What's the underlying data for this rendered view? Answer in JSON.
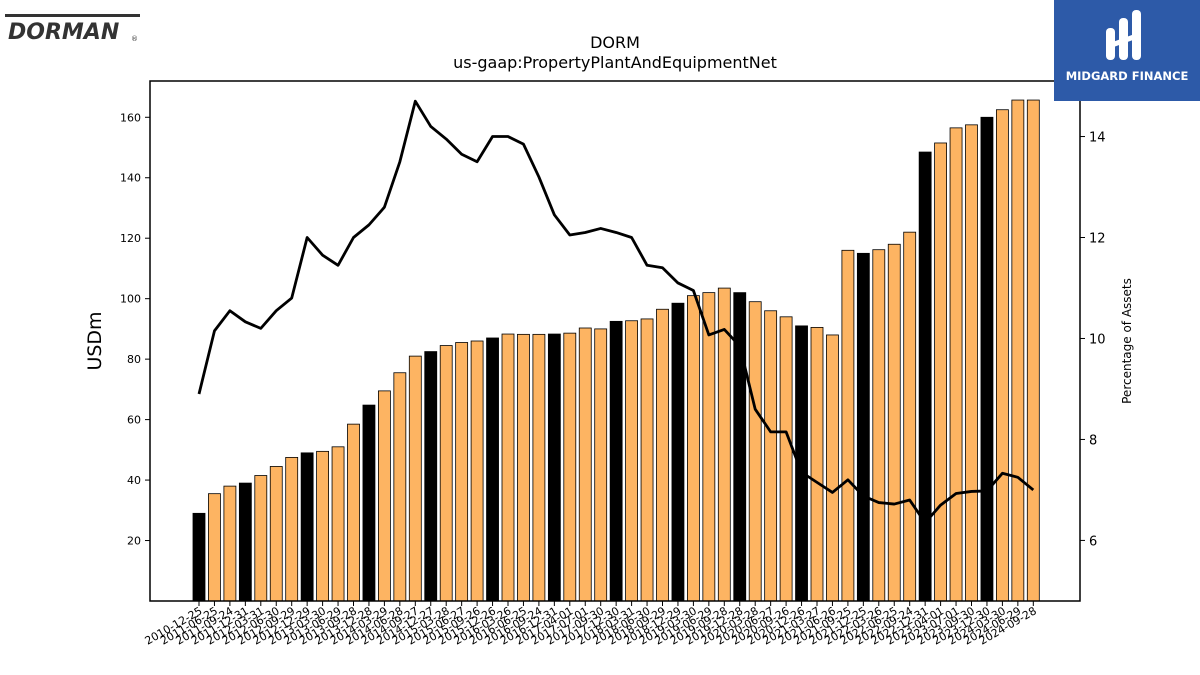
{
  "chart_data": {
    "type": "bar",
    "title": "DORM",
    "subtitle": "us-gaap:PropertyPlantAndEquipmentNet",
    "ylabel": "USDm",
    "y2label": "Percentage of Assets",
    "ylim": [
      0,
      172
    ],
    "y2lim": [
      4.8,
      15.1
    ],
    "yticks": [
      20,
      40,
      60,
      80,
      100,
      120,
      140,
      160
    ],
    "y2ticks": [
      6,
      8,
      10,
      12,
      14
    ],
    "categories": [
      "2010-12-25",
      "2011-06-25",
      "2011-09-24",
      "2011-12-31",
      "2012-03-31",
      "2012-06-30",
      "2012-09-29",
      "2012-12-29",
      "2013-03-30",
      "2013-06-29",
      "2013-09-28",
      "2013-12-28",
      "2014-03-29",
      "2014-06-28",
      "2014-09-27",
      "2014-12-27",
      "2015-03-28",
      "2015-06-27",
      "2015-09-26",
      "2015-12-26",
      "2016-03-26",
      "2016-06-25",
      "2016-09-24",
      "2016-12-31",
      "2017-04-01",
      "2017-07-01",
      "2017-09-30",
      "2017-12-30",
      "2018-03-31",
      "2018-06-30",
      "2018-09-29",
      "2018-12-29",
      "2019-03-30",
      "2019-06-29",
      "2019-09-28",
      "2019-12-28",
      "2020-03-28",
      "2020-06-27",
      "2020-09-26",
      "2020-12-26",
      "2021-03-27",
      "2021-06-26",
      "2021-09-25",
      "2021-12-25",
      "2022-03-26",
      "2022-06-25",
      "2022-09-24",
      "2022-12-31",
      "2023-04-01",
      "2023-07-01",
      "2023-09-30",
      "2023-12-30",
      "2024-03-30",
      "2024-06-29",
      "2024-09-28"
    ],
    "series": [
      {
        "type": "bar",
        "values": [
          29,
          35.5,
          38,
          39,
          41.5,
          44.5,
          47.5,
          49,
          49.5,
          51,
          58.5,
          64.8,
          69.5,
          75.5,
          81,
          82.5,
          84.5,
          85.5,
          86,
          87,
          88.3,
          88.2,
          88.2,
          88.3,
          88.6,
          90.3,
          90,
          92.5,
          92.7,
          93.3,
          96.5,
          98.5,
          101,
          102,
          103.5,
          102,
          99,
          96,
          94,
          91,
          90.5,
          88,
          116,
          115,
          116.2,
          118,
          122,
          148.5,
          151.5,
          156.5,
          157.5,
          160,
          162.5,
          165.7,
          165.7
        ],
        "highlight": [
          true,
          false,
          false,
          true,
          false,
          false,
          false,
          true,
          false,
          false,
          false,
          true,
          false,
          false,
          false,
          true,
          false,
          false,
          false,
          true,
          false,
          false,
          false,
          true,
          false,
          false,
          false,
          true,
          false,
          false,
          false,
          true,
          false,
          false,
          false,
          true,
          false,
          false,
          false,
          true,
          false,
          false,
          false,
          true,
          false,
          false,
          false,
          true,
          false,
          false,
          false,
          true,
          false,
          false,
          false
        ]
      },
      {
        "type": "line",
        "axis": "right",
        "values": [
          8.9,
          10.15,
          10.55,
          10.33,
          10.2,
          10.55,
          10.8,
          12.0,
          11.65,
          11.45,
          12.0,
          12.25,
          12.6,
          13.5,
          14.7,
          14.2,
          13.95,
          13.65,
          13.5,
          14.0,
          14.0,
          13.85,
          13.2,
          12.45,
          12.05,
          12.1,
          12.18,
          12.1,
          12.0,
          11.45,
          11.4,
          11.1,
          10.95,
          10.07,
          10.18,
          9.85,
          8.6,
          8.15,
          8.15,
          7.35,
          7.15,
          6.95,
          7.2,
          6.88,
          6.75,
          6.72,
          6.8,
          6.35,
          6.7,
          6.93,
          6.97,
          6.98,
          7.33,
          7.25,
          7.0
        ]
      }
    ],
    "colors": {
      "bar": "#FDB462",
      "bar_highlight": "#000000",
      "line": "#000000",
      "edge": "#000000"
    }
  },
  "logos": {
    "left": "DORMAN",
    "right": "MIDGARD FINANCE"
  }
}
